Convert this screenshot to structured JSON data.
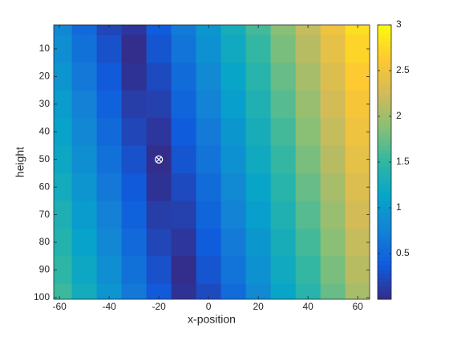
{
  "chart_data": {
    "type": "heatmap",
    "xlabel": "x-position",
    "ylabel": "height",
    "x": [
      -60,
      -50,
      -40,
      -30,
      -20,
      -10,
      0,
      10,
      20,
      30,
      40,
      50,
      60
    ],
    "y": [
      0,
      10,
      20,
      30,
      40,
      50,
      60,
      70,
      80,
      90,
      100
    ],
    "z": [
      [
        0.81,
        0.51,
        0.21,
        0.09,
        0.39,
        0.69,
        0.99,
        1.29,
        1.59,
        1.89,
        2.19,
        2.49,
        2.79
      ],
      [
        0.89,
        0.59,
        0.29,
        0.02,
        0.32,
        0.62,
        0.92,
        1.22,
        1.52,
        1.82,
        2.12,
        2.42,
        2.72
      ],
      [
        0.96,
        0.66,
        0.36,
        0.06,
        0.24,
        0.54,
        0.84,
        1.14,
        1.44,
        1.74,
        2.04,
        2.34,
        2.64
      ],
      [
        1.04,
        0.74,
        0.44,
        0.14,
        0.17,
        0.47,
        0.77,
        1.07,
        1.37,
        1.67,
        1.97,
        2.27,
        2.57
      ],
      [
        1.11,
        0.81,
        0.51,
        0.21,
        0.09,
        0.39,
        0.69,
        0.99,
        1.29,
        1.59,
        1.89,
        2.19,
        2.49
      ],
      [
        1.19,
        0.89,
        0.59,
        0.29,
        0.02,
        0.32,
        0.62,
        0.92,
        1.22,
        1.52,
        1.82,
        2.12,
        2.42
      ],
      [
        1.26,
        0.96,
        0.66,
        0.36,
        0.06,
        0.24,
        0.54,
        0.84,
        1.14,
        1.44,
        1.74,
        2.04,
        2.34
      ],
      [
        1.34,
        1.04,
        0.74,
        0.44,
        0.14,
        0.17,
        0.47,
        0.77,
        1.07,
        1.37,
        1.67,
        1.97,
        2.27
      ],
      [
        1.41,
        1.11,
        0.81,
        0.51,
        0.21,
        0.09,
        0.39,
        0.69,
        0.99,
        1.29,
        1.59,
        1.89,
        2.19
      ],
      [
        1.49,
        1.19,
        0.89,
        0.59,
        0.29,
        0.02,
        0.32,
        0.62,
        0.92,
        1.22,
        1.52,
        1.82,
        2.12
      ],
      [
        1.56,
        1.26,
        0.96,
        0.66,
        0.36,
        0.06,
        0.24,
        0.54,
        0.84,
        1.14,
        1.44,
        1.74,
        2.04
      ]
    ],
    "xlim": [
      -62.3,
      64.8
    ],
    "xticks": [
      -60,
      -40,
      -20,
      0,
      20,
      40,
      60
    ],
    "ylim": [
      1.3,
      100.6
    ],
    "yticks": [
      10,
      20,
      30,
      40,
      50,
      60,
      70,
      80,
      90,
      100
    ],
    "y_reversed": true,
    "clim": [
      0,
      3
    ],
    "cticks": [
      0.5,
      1,
      1.5,
      2,
      2.5,
      3
    ],
    "colormap": [
      "#352a87",
      "#0f5cdd",
      "#1481d6",
      "#06a4ca",
      "#2eb7a4",
      "#87bf77",
      "#d1bb59",
      "#fec832",
      "#f9fb0e"
    ],
    "marker": {
      "x": -20,
      "y": 50
    }
  }
}
